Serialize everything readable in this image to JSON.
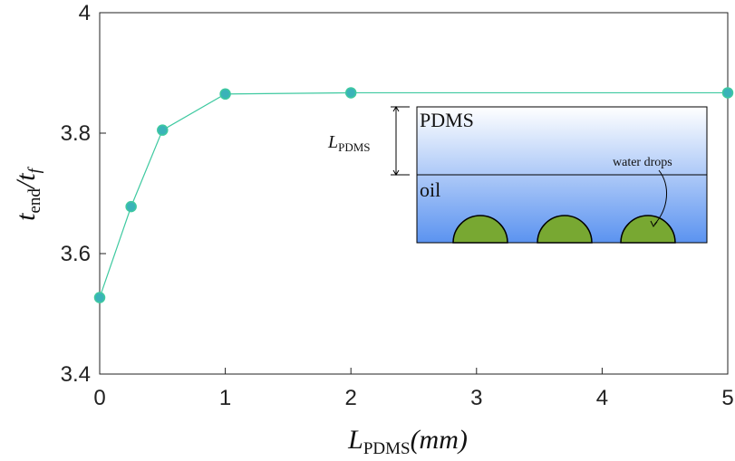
{
  "chart_data": {
    "type": "line",
    "x": [
      0,
      0.25,
      0.5,
      1,
      2,
      5
    ],
    "series": [
      {
        "color": "#3ec9a0",
        "marker_color": "#3ab3b8",
        "values": [
          3.527,
          3.678,
          3.805,
          3.865,
          3.867,
          3.867
        ]
      }
    ],
    "xlim": [
      0,
      5
    ],
    "xticks": [
      0,
      1,
      2,
      3,
      4,
      5
    ],
    "ylim": [
      3.4,
      4
    ],
    "yticks": [
      3.4,
      3.6,
      3.8,
      4
    ],
    "xlabel": {
      "main": "L",
      "sub": "PDMS",
      "unit": "(mm)"
    },
    "ylabel": {
      "t1": "t",
      "sub1": "end",
      "slash": "/t",
      "sub2": "f"
    },
    "inset": {
      "top_layer": "PDMS",
      "bottom_layer": "oil",
      "drops": "water drops",
      "thickness": {
        "main": "L",
        "sub": "PDMS"
      }
    }
  }
}
